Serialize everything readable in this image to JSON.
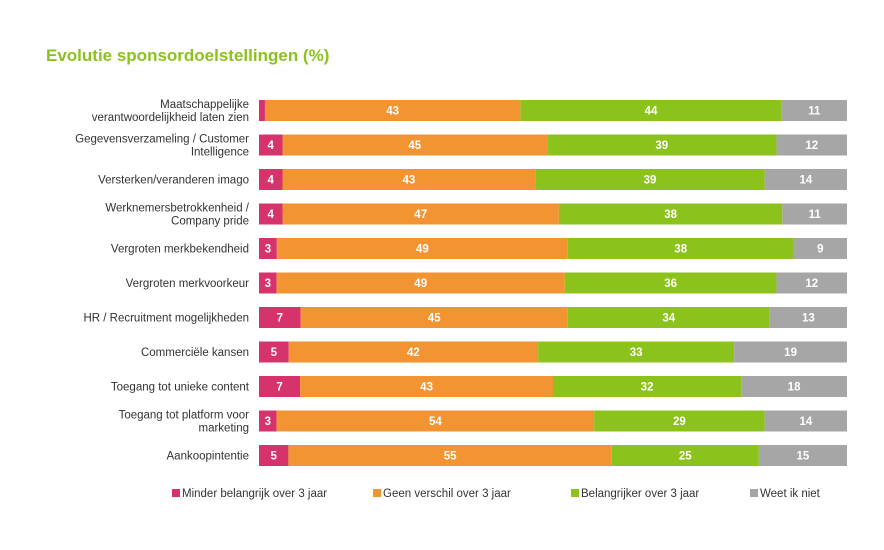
{
  "colors": {
    "title": "#8cc21c",
    "series": [
      "#d6336c",
      "#f39433",
      "#8cc21c",
      "#a6a6a6"
    ]
  },
  "chart_data": {
    "type": "bar",
    "orientation": "horizontal",
    "stacked": true,
    "title": "Evolutie sponsordoelstellingen (%)",
    "legend_position": "bottom",
    "categories": [
      "Maatschappelijke verantwoordelijkheid laten zien",
      "Gegevensverzameling / Customer Intelligence",
      "Versterken/veranderen imago",
      "Werknemersbetrokkenheid / Company pride",
      "Vergroten merkbekendheid",
      "Vergroten merkvoorkeur",
      "HR / Recruitment mogelijkheden",
      "Commerciële kansen",
      "Toegang tot unieke content",
      "Toegang tot platform voor marketing",
      "Aankoopintentie"
    ],
    "category_lines": [
      [
        "Maatschappelijke",
        "verantwoordelijkheid laten zien"
      ],
      [
        "Gegevensverzameling / Customer",
        "Intelligence"
      ],
      [
        "Versterken/veranderen imago"
      ],
      [
        "Werknemersbetrokkenheid /",
        "Company pride"
      ],
      [
        "Vergroten merkbekendheid"
      ],
      [
        "Vergroten merkvoorkeur"
      ],
      [
        "HR / Recruitment mogelijkheden"
      ],
      [
        "Commerciële kansen"
      ],
      [
        "Toegang tot unieke content"
      ],
      [
        "Toegang tot platform voor",
        "marketing"
      ],
      [
        "Aankoopintentie"
      ]
    ],
    "series": [
      {
        "name": "Minder belangrijk over 3 jaar",
        "values": [
          1,
          4,
          4,
          4,
          3,
          3,
          7,
          5,
          7,
          3,
          5
        ]
      },
      {
        "name": "Geen verschil over 3 jaar",
        "values": [
          43,
          45,
          43,
          47,
          49,
          49,
          45,
          42,
          43,
          54,
          55
        ]
      },
      {
        "name": "Belangrijker over 3 jaar",
        "values": [
          44,
          39,
          39,
          38,
          38,
          36,
          34,
          33,
          32,
          29,
          25
        ]
      },
      {
        "name": "Weet ik niet",
        "values": [
          11,
          12,
          14,
          11,
          9,
          12,
          13,
          19,
          18,
          14,
          15
        ]
      }
    ],
    "value_labels": [
      [
        "",
        "43",
        "44",
        "11"
      ],
      [
        "4",
        "45",
        "39",
        "12"
      ],
      [
        "4",
        "43",
        "39",
        "14"
      ],
      [
        "4",
        "47",
        "38",
        "11"
      ],
      [
        "3",
        "49",
        "38",
        "9"
      ],
      [
        "3",
        "49",
        "36",
        "12"
      ],
      [
        "7",
        "45",
        "34",
        "13"
      ],
      [
        "5",
        "42",
        "33",
        "19"
      ],
      [
        "7",
        "43",
        "32",
        "18"
      ],
      [
        "3",
        "54",
        "29",
        "14"
      ],
      [
        "5",
        "55",
        "25",
        "15"
      ]
    ]
  }
}
